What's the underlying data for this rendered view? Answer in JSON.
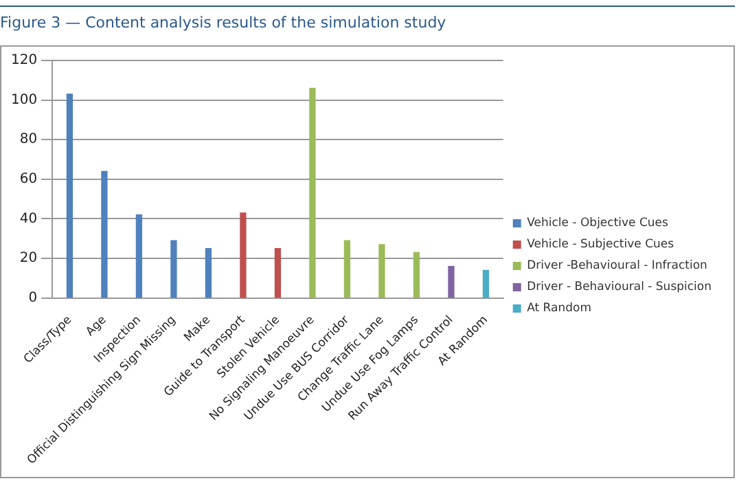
{
  "chart_data": {
    "type": "bar",
    "title": "Figure 3 — Content analysis results of the simulation study",
    "categories": [
      "Class/Type",
      "Age",
      "Inspection",
      "Official Distinguishing Sign Missing",
      "Make",
      "Guide to Transport",
      "Stolen Vehicle",
      "No Signaling Manoeuvre",
      "Undue Use BUS Corridor",
      "Change Traffic Lane",
      "Undue Use Fog Lamps",
      "Run Away Traffic Control",
      "At Random"
    ],
    "series": [
      {
        "name": "Vehicle - Objective Cues",
        "color": "#4f81bd",
        "values": [
          103,
          64,
          42,
          29,
          25,
          null,
          null,
          null,
          null,
          null,
          null,
          null,
          null
        ]
      },
      {
        "name": "Vehicle - Subjective Cues",
        "color": "#c0504d",
        "values": [
          null,
          null,
          null,
          null,
          null,
          43,
          25,
          null,
          null,
          null,
          null,
          null,
          null
        ]
      },
      {
        "name": "Driver -Behavioural - Infraction",
        "color": "#9bbb59",
        "values": [
          null,
          null,
          null,
          null,
          null,
          null,
          null,
          106,
          29,
          27,
          23,
          null,
          null
        ]
      },
      {
        "name": "Driver - Behavioural - Suspicion",
        "color": "#8064a2",
        "values": [
          null,
          null,
          null,
          null,
          null,
          null,
          null,
          null,
          null,
          null,
          null,
          16,
          null
        ]
      },
      {
        "name": "At Random",
        "color": "#4bacc6",
        "values": [
          null,
          null,
          null,
          null,
          null,
          null,
          null,
          null,
          null,
          null,
          null,
          null,
          14
        ]
      }
    ],
    "ylim": [
      0,
      120
    ],
    "yticks": [
      0,
      20,
      40,
      60,
      80,
      100,
      120
    ],
    "grid": "y",
    "legend": "right"
  }
}
